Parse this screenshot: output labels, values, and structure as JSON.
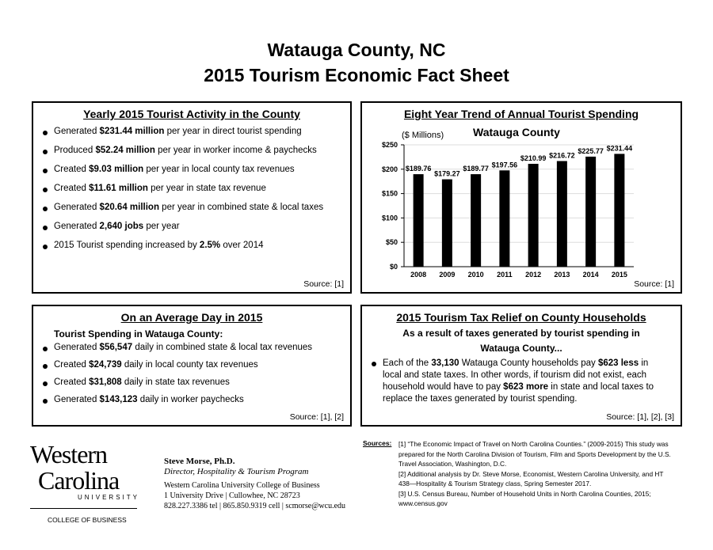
{
  "header": {
    "line1": "Watauga County, NC",
    "line2": "2015 Tourism Economic Fact Sheet"
  },
  "yearly": {
    "title": "Yearly 2015 Tourist Activity in the County",
    "items": [
      {
        "pre": "Generated ",
        "bold": "$231.44 million",
        "post": " per year in direct tourist spending"
      },
      {
        "pre": "Produced ",
        "bold": "$52.24 million",
        "post": " per year in worker income & paychecks"
      },
      {
        "pre": "Created ",
        "bold": "$9.03 million",
        "post": " per year in local county tax revenues"
      },
      {
        "pre": "Created ",
        "bold": "$11.61 million",
        "post": " per year in state tax revenue"
      },
      {
        "pre": "Generated ",
        "bold": "$20.64 million",
        "post": " per year in combined state & local taxes"
      },
      {
        "pre": "Generated ",
        "bold": "2,640 jobs",
        "post": " per year"
      },
      {
        "pre": "2015 Tourist spending increased by ",
        "bold": "2.5%",
        "post": " over 2014"
      }
    ],
    "source": "Source: [1]"
  },
  "trend": {
    "title": "Eight Year Trend of Annual Tourist Spending",
    "source": "Source: [1]"
  },
  "chart_data": {
    "type": "bar",
    "title": "Watauga County",
    "ylabel": "($ Millions)",
    "categories": [
      "2008",
      "2009",
      "2010",
      "2011",
      "2012",
      "2013",
      "2014",
      "2015"
    ],
    "values": [
      189.76,
      179.27,
      189.77,
      197.56,
      210.99,
      216.72,
      225.77,
      231.44
    ],
    "data_labels": [
      "$189.76",
      "$179.27",
      "$189.77",
      "$197.56",
      "$210.99",
      "$216.72",
      "$225.77",
      "$231.44"
    ],
    "ylim": [
      0,
      250
    ],
    "yticks": [
      "$0",
      "$50",
      "$100",
      "$150",
      "$200",
      "$250"
    ],
    "grid": true,
    "bar_color": "#000000"
  },
  "day": {
    "title": "On an Average Day in 2015",
    "subtitle": "Tourist Spending in Watauga County:",
    "items": [
      {
        "pre": "Generated ",
        "bold": "$56,547",
        "post": " daily in combined state & local tax revenues"
      },
      {
        "pre": "Created ",
        "bold": "$24,739",
        "post": " daily in local county tax revenues"
      },
      {
        "pre": "Created ",
        "bold": "$31,808",
        "post": " daily in state tax revenues"
      },
      {
        "pre": "Generated ",
        "bold": "$143,123",
        "post": " daily in worker paychecks"
      }
    ],
    "source": "Source: [1], [2]"
  },
  "relief": {
    "title": "2015 Tourism Tax Relief on County Households",
    "sub1": "As a result of taxes generated by tourist spending in",
    "sub2": "Watauga County...",
    "t1": "Each of the ",
    "b1": "33,130",
    "t2": " Watauga County households pay ",
    "b2": "$623 less",
    "t3": " in local and state taxes.  In other words, if tourism did not exist, each household would have to pay ",
    "b3": "$623 more",
    "t4": " in state and local taxes to replace the taxes generated by tourist spending.",
    "source": "Source: [1], [2], [3]"
  },
  "logo": {
    "w": "Western",
    "c": "Carolina",
    "u": "UNIVERSITY",
    "college": "COLLEGE OF BUSINESS"
  },
  "contact": {
    "name": "Steve Morse, Ph.D.",
    "role": "Director, Hospitality & Tourism Program",
    "org": "Western Carolina University College of Business",
    "addr": "1 University Drive  |  Cullowhee, NC 28723",
    "phone": "828.227.3386 tel  |  865.850.9319 cell  |  scmorse@wcu.edu"
  },
  "sources": {
    "label": "Sources:",
    "s1": "[1] “The Economic Impact of Travel on North Carolina Counties.”  (2009-2015) This study was prepared for the North Carolina Division of Tourism, Film and Sports Development by the U.S. Travel Association, Washington, D.C.",
    "s2": "[2] Additional analysis by Dr. Steve Morse, Economist, Western Carolina University, and HT 438—Hospitality & Tourism Strategy class, Spring Semester 2017.",
    "s3": "[3] U.S. Census Bureau, Number of Household Units in North Carolina Counties, 2015; www.census.gov"
  }
}
